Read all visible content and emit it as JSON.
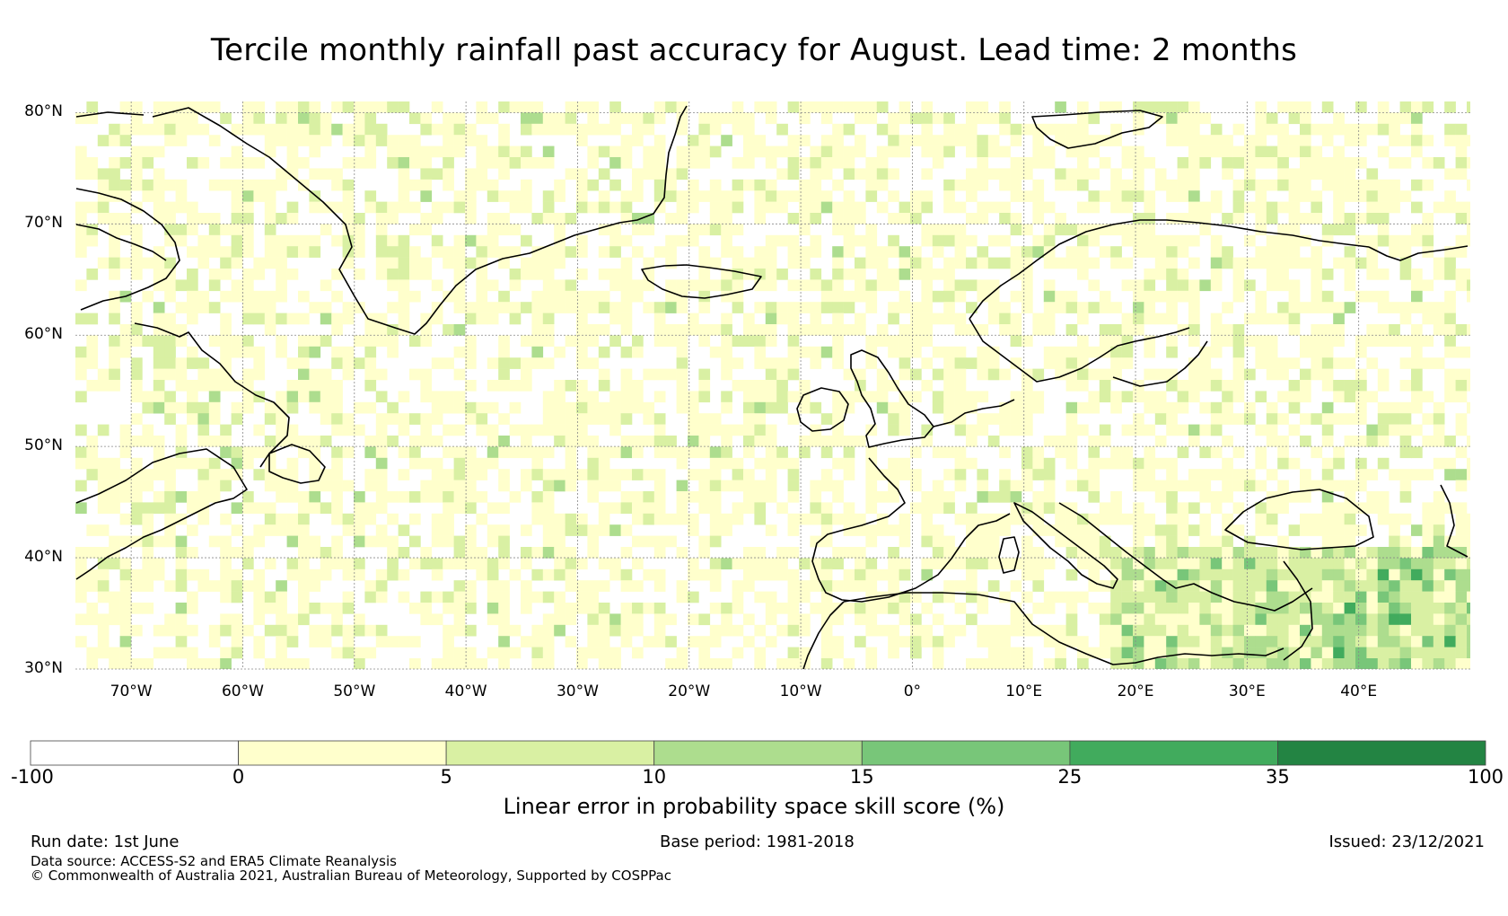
{
  "title": "Tercile monthly rainfall past accuracy for August. Lead time: 2 months",
  "map": {
    "lat_labels": [
      "80°N",
      "70°N",
      "60°N",
      "50°N",
      "40°N",
      "30°N"
    ],
    "lon_labels": [
      "70°W",
      "60°W",
      "50°W",
      "40°W",
      "30°W",
      "20°W",
      "10°W",
      "0°",
      "10°E",
      "20°E",
      "30°E",
      "40°E"
    ],
    "extent_lon": [
      -75,
      50
    ],
    "extent_lat": [
      30,
      81
    ],
    "gridlines": true,
    "coastline_color": "#000000"
  },
  "colorbar": {
    "bounds": [
      "-100",
      "0",
      "5",
      "10",
      "15",
      "25",
      "35",
      "100"
    ],
    "colors": [
      "#ffffff",
      "#ffffcc",
      "#d9f0a3",
      "#addd8e",
      "#78c679",
      "#41ab5d",
      "#238443"
    ],
    "label": "Linear error in probability space skill score (%)"
  },
  "footer": {
    "run_date": "Run date: 1st June",
    "base_period": "Base period: 1981-2018",
    "issued": "Issued: 23/12/2021",
    "data_source": "Data source: ACCESS-S2 and ERA5 Climate Reanalysis",
    "copyright": "© Commonwealth of Australia 2021, Australian Bureau of Meteorology, Supported by COSPPac"
  }
}
